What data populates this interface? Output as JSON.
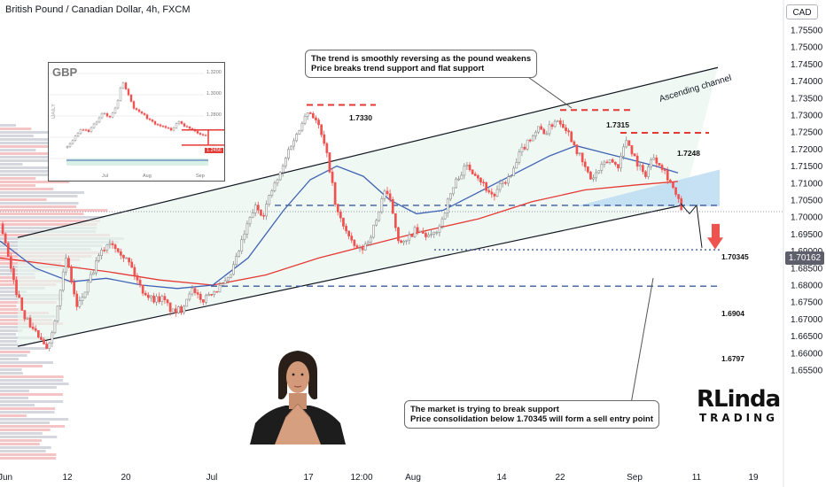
{
  "header": {
    "title": "British Pound / Canadian Dollar, 4h, FXCM",
    "currency": "CAD"
  },
  "chart_data": {
    "type": "candlestick",
    "symbol": "GBPCAD",
    "timeframe": "4h",
    "ylim": [
      1.6525,
      1.76
    ],
    "y_ticks": [
      "1.75500",
      "1.75000",
      "1.74500",
      "1.74000",
      "1.73500",
      "1.73000",
      "1.72500",
      "1.72000",
      "1.71500",
      "1.71000",
      "1.70500",
      "1.70000",
      "1.69500",
      "1.69000",
      "1.68500",
      "1.68000",
      "1.67500",
      "1.67000",
      "1.66500",
      "1.66000",
      "1.65500"
    ],
    "x_ticks": [
      "Jun",
      "12",
      "20",
      "Jul",
      "17",
      "12:00",
      "Aug",
      "14",
      "22",
      "Sep",
      "11",
      "19"
    ],
    "price_path": [
      [
        0,
        1.698
      ],
      [
        14,
        1.681
      ],
      [
        28,
        1.67
      ],
      [
        40,
        1.666
      ],
      [
        50,
        1.661
      ],
      [
        58,
        1.666
      ],
      [
        66,
        1.678
      ],
      [
        74,
        1.688
      ],
      [
        86,
        1.673
      ],
      [
        98,
        1.68
      ],
      [
        110,
        1.688
      ],
      [
        122,
        1.693
      ],
      [
        132,
        1.691
      ],
      [
        146,
        1.686
      ],
      [
        158,
        1.679
      ],
      [
        170,
        1.676
      ],
      [
        182,
        1.676
      ],
      [
        194,
        1.672
      ],
      [
        204,
        1.673
      ],
      [
        214,
        1.679
      ],
      [
        226,
        1.675
      ],
      [
        236,
        1.678
      ],
      [
        246,
        1.679
      ],
      [
        256,
        1.681
      ],
      [
        266,
        1.688
      ],
      [
        276,
        1.696
      ],
      [
        286,
        1.703
      ],
      [
        296,
        1.701
      ],
      [
        306,
        1.708
      ],
      [
        316,
        1.713
      ],
      [
        326,
        1.721
      ],
      [
        336,
        1.725
      ],
      [
        342,
        1.7305
      ],
      [
        350,
        1.731
      ],
      [
        358,
        1.727
      ],
      [
        366,
        1.72
      ],
      [
        372,
        1.713
      ],
      [
        378,
        1.702
      ],
      [
        386,
        1.698
      ],
      [
        396,
        1.692
      ],
      [
        406,
        1.69
      ],
      [
        414,
        1.693
      ],
      [
        424,
        1.699
      ],
      [
        432,
        1.708
      ],
      [
        440,
        1.704
      ],
      [
        448,
        1.694
      ],
      [
        456,
        1.692
      ],
      [
        466,
        1.696
      ],
      [
        476,
        1.695
      ],
      [
        486,
        1.694
      ],
      [
        496,
        1.698
      ],
      [
        506,
        1.706
      ],
      [
        516,
        1.712
      ],
      [
        526,
        1.715
      ],
      [
        536,
        1.713
      ],
      [
        546,
        1.709
      ],
      [
        556,
        1.706
      ],
      [
        566,
        1.71
      ],
      [
        576,
        1.712
      ],
      [
        586,
        1.719
      ],
      [
        596,
        1.723
      ],
      [
        606,
        1.726
      ],
      [
        616,
        1.725
      ],
      [
        626,
        1.729
      ],
      [
        636,
        1.727
      ],
      [
        646,
        1.722
      ],
      [
        656,
        1.716
      ],
      [
        666,
        1.711
      ],
      [
        676,
        1.714
      ],
      [
        686,
        1.717
      ],
      [
        696,
        1.715
      ],
      [
        706,
        1.723
      ],
      [
        716,
        1.717
      ],
      [
        726,
        1.712
      ],
      [
        736,
        1.718
      ],
      [
        746,
        1.715
      ],
      [
        756,
        1.71
      ],
      [
        762,
        1.706
      ],
      [
        768,
        1.7025
      ]
    ],
    "series": [
      {
        "name": "EMA",
        "color": "#e53935",
        "values": [
          [
            0,
            1.688
          ],
          [
            60,
            1.686
          ],
          [
            120,
            1.684
          ],
          [
            180,
            1.6815
          ],
          [
            240,
            1.68
          ],
          [
            300,
            1.683
          ],
          [
            360,
            1.688
          ],
          [
            420,
            1.692
          ],
          [
            480,
            1.696
          ],
          [
            540,
            1.6995
          ],
          [
            600,
            1.7045
          ],
          [
            660,
            1.708
          ],
          [
            720,
            1.7095
          ],
          [
            765,
            1.7105
          ]
        ]
      },
      {
        "name": "SMA",
        "color": "#3f62b5",
        "values": [
          [
            0,
            1.693
          ],
          [
            40,
            1.685
          ],
          [
            80,
            1.681
          ],
          [
            120,
            1.682
          ],
          [
            160,
            1.68
          ],
          [
            200,
            1.679
          ],
          [
            240,
            1.68
          ],
          [
            280,
            1.688
          ],
          [
            320,
            1.702
          ],
          [
            350,
            1.711
          ],
          [
            380,
            1.715
          ],
          [
            410,
            1.712
          ],
          [
            440,
            1.705
          ],
          [
            470,
            1.701
          ],
          [
            500,
            1.702
          ],
          [
            530,
            1.706
          ],
          [
            560,
            1.71
          ],
          [
            590,
            1.714
          ],
          [
            620,
            1.718
          ],
          [
            650,
            1.721
          ],
          [
            680,
            1.719
          ],
          [
            710,
            1.717
          ],
          [
            740,
            1.715
          ],
          [
            765,
            1.713
          ]
        ]
      }
    ],
    "levels": [
      {
        "label": "1.7330",
        "value": 1.733,
        "style": "dashed-red"
      },
      {
        "label": "1.7315",
        "value": 1.7315,
        "style": "dashed-red"
      },
      {
        "label": "1.7248",
        "value": 1.7248,
        "style": "dashed-red"
      },
      {
        "label": "1.70345",
        "value": 1.70345,
        "style": "dashed-blue"
      },
      {
        "label": "1.6904",
        "value": 1.6904,
        "style": "dotted-blue"
      },
      {
        "label": "1.6797",
        "value": 1.6797,
        "style": "dashed-blue"
      }
    ],
    "current_price": "1.70162",
    "channel": {
      "label": "Ascending channel",
      "upper": [
        [
          20,
          1.694
        ],
        [
          810,
          1.744
        ]
      ],
      "lower": [
        [
          20,
          1.662
        ],
        [
          770,
          1.7035
        ]
      ]
    },
    "annotations": [
      {
        "id": "top",
        "lines": [
          "The trend is smoothly reversing as the pound weakens",
          "Price breaks trend support and flat support"
        ]
      },
      {
        "id": "bottom",
        "lines": [
          "The market is trying to break support",
          "Price consolidation below 1.70345 will form a sell entry point"
        ]
      }
    ],
    "projection": [
      [
        768,
        1.704
      ],
      [
        778,
        1.701
      ],
      [
        786,
        1.7035
      ],
      [
        792,
        1.691
      ]
    ],
    "colors": {
      "up": "#26a69a",
      "down": "#ef5350",
      "candle_up": "#8a8a8a",
      "candle_down": "#ef5350",
      "channel_fill": "#e8f5ee",
      "wedge_fill": "#bcdcf2",
      "level_red": "#e53935",
      "level_blue": "#3d5a9b",
      "arrow": "#ef5350"
    }
  },
  "inset": {
    "symbol": "GBP",
    "period_label": "DAILY",
    "prices": [
      "1.3200",
      "1.3000",
      "1.2800"
    ],
    "last_price": "1.2456",
    "x_ticks": [
      "Jul",
      "Aug",
      "Sep"
    ],
    "path": [
      [
        0,
        1.26
      ],
      [
        8,
        1.268
      ],
      [
        16,
        1.275
      ],
      [
        24,
        1.272
      ],
      [
        32,
        1.28
      ],
      [
        40,
        1.288
      ],
      [
        48,
        1.284
      ],
      [
        56,
        1.294
      ],
      [
        62,
        1.313
      ],
      [
        68,
        1.304
      ],
      [
        76,
        1.29
      ],
      [
        86,
        1.286
      ],
      [
        96,
        1.28
      ],
      [
        106,
        1.277
      ],
      [
        116,
        1.274
      ],
      [
        126,
        1.28
      ],
      [
        136,
        1.276
      ],
      [
        146,
        1.272
      ],
      [
        156,
        1.27
      ],
      [
        166,
        1.265
      ],
      [
        176,
        1.26
      ],
      [
        182,
        1.256
      ]
    ]
  },
  "brand": {
    "line1": "RLinda",
    "line2": "TRADING"
  }
}
